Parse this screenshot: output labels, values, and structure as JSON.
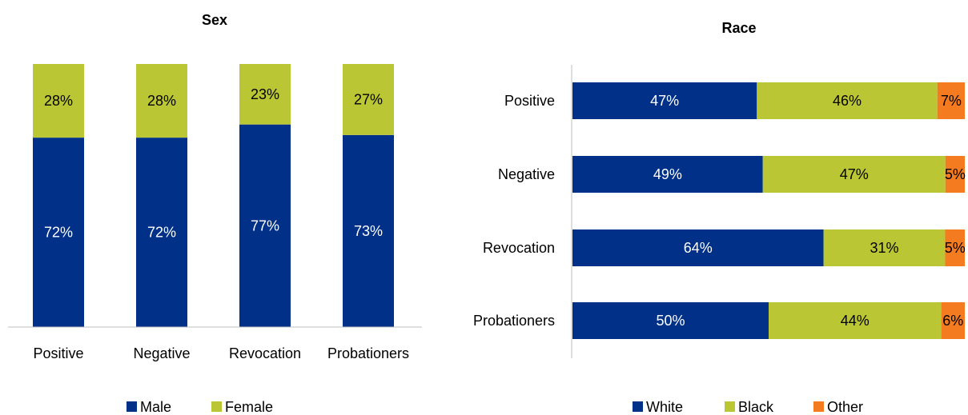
{
  "chart_data": [
    {
      "type": "bar",
      "orientation": "vertical",
      "stacked": true,
      "title": "Sex",
      "categories": [
        "Positive",
        "Negative",
        "Revocation",
        "Probationers"
      ],
      "series": [
        {
          "name": "Male",
          "values": [
            72,
            72,
            77,
            73
          ],
          "labels": [
            "72%",
            "72%",
            "77%",
            "73%"
          ],
          "color": "#003087"
        },
        {
          "name": "Female",
          "values": [
            28,
            28,
            23,
            27
          ],
          "labels": [
            "28%",
            "28%",
            "23%",
            "27%"
          ],
          "color": "#BBC634"
        }
      ],
      "ylim": [
        0,
        100
      ],
      "grid": false,
      "legend": "bottom"
    },
    {
      "type": "bar",
      "orientation": "horizontal",
      "stacked": true,
      "title": "Race",
      "categories": [
        "Positive",
        "Negative",
        "Revocation",
        "Probationers"
      ],
      "series": [
        {
          "name": "White",
          "values": [
            47,
            49,
            64,
            50
          ],
          "labels": [
            "47%",
            "49%",
            "64%",
            "50%"
          ],
          "color": "#003087"
        },
        {
          "name": "Black",
          "values": [
            46,
            47,
            31,
            44
          ],
          "labels": [
            "46%",
            "47%",
            "31%",
            "44%"
          ],
          "color": "#BBC634"
        },
        {
          "name": "Other",
          "values": [
            7,
            5,
            5,
            6
          ],
          "labels": [
            "7%",
            "5%",
            "5%",
            "6%"
          ],
          "color": "#F47B20"
        }
      ],
      "xlim": [
        0,
        100
      ],
      "grid": false,
      "legend": "bottom"
    }
  ]
}
